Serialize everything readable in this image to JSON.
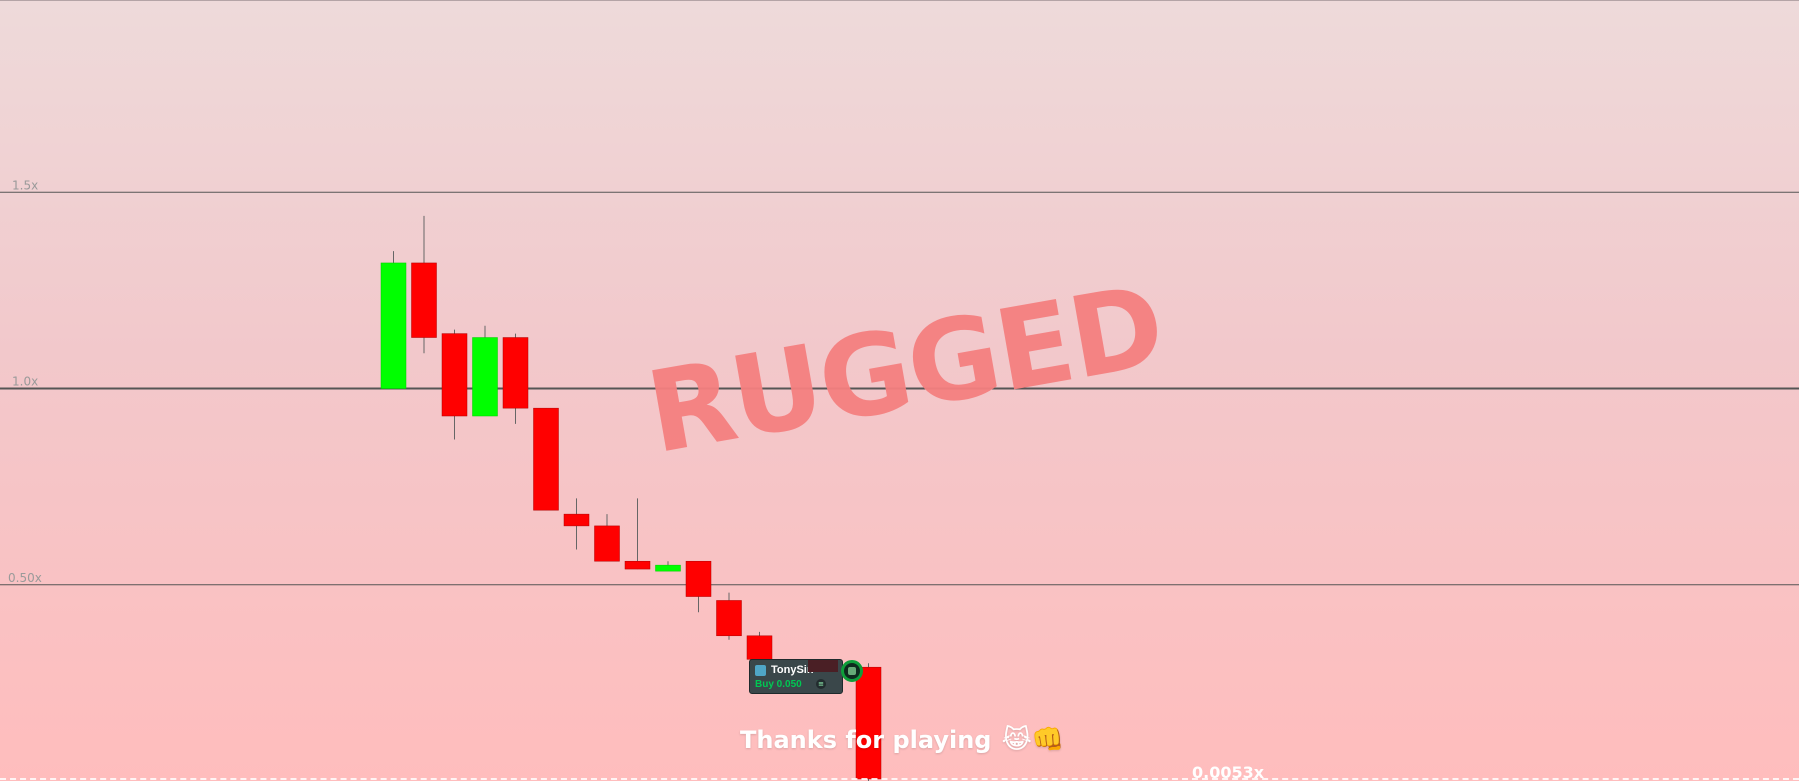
{
  "chart_data": {
    "type": "candlestick",
    "title": "",
    "xlabel": "",
    "ylabel": "",
    "ylim": [
      0.0,
      1.99
    ],
    "gridlines": [
      {
        "value": 1.5,
        "label": "1.5x"
      },
      {
        "value": 1.0,
        "label": "1.0x"
      },
      {
        "value": 0.5,
        "label": "0.50x"
      }
    ],
    "candles": [
      {
        "open": 1.0,
        "close": 1.32,
        "high": 1.35,
        "low": 1.0
      },
      {
        "open": 1.32,
        "close": 1.13,
        "high": 1.44,
        "low": 1.09
      },
      {
        "open": 1.14,
        "close": 0.93,
        "high": 1.15,
        "low": 0.87
      },
      {
        "open": 0.93,
        "close": 1.13,
        "high": 1.16,
        "low": 0.93
      },
      {
        "open": 1.13,
        "close": 0.95,
        "high": 1.14,
        "low": 0.91
      },
      {
        "open": 0.95,
        "close": 0.69,
        "high": 0.95,
        "low": 0.69
      },
      {
        "open": 0.68,
        "close": 0.65,
        "high": 0.72,
        "low": 0.59
      },
      {
        "open": 0.65,
        "close": 0.56,
        "high": 0.68,
        "low": 0.56
      },
      {
        "open": 0.56,
        "close": 0.54,
        "high": 0.72,
        "low": 0.54
      },
      {
        "open": 0.54,
        "close": 0.55,
        "high": 0.56,
        "low": 0.54
      },
      {
        "open": 0.56,
        "close": 0.47,
        "high": 0.56,
        "low": 0.43
      },
      {
        "open": 0.46,
        "close": 0.37,
        "high": 0.48,
        "low": 0.36
      },
      {
        "open": 0.37,
        "close": 0.31,
        "high": 0.38,
        "low": 0.3
      },
      {
        "open": 0.3,
        "close": 0.3,
        "high": 0.31,
        "low": 0.29
      },
      {
        "open": 0.29,
        "close": 0.0053,
        "high": 0.3,
        "low": 0.0
      }
    ],
    "up_color": "#00ff00",
    "down_color": "#ff0000",
    "current_value_label": "0.0053x"
  },
  "overlay": {
    "status_text": "RUGGED",
    "message": "Thanks for playing",
    "emoji": "😹👊"
  },
  "trade": {
    "username": "TonySin",
    "action": "Buy 0.050",
    "coin_symbol": "≡"
  },
  "colors": {
    "rugged": "#f58080",
    "grid": "#555555",
    "axis_label": "#9a9a9a",
    "buy": "#00c853"
  }
}
